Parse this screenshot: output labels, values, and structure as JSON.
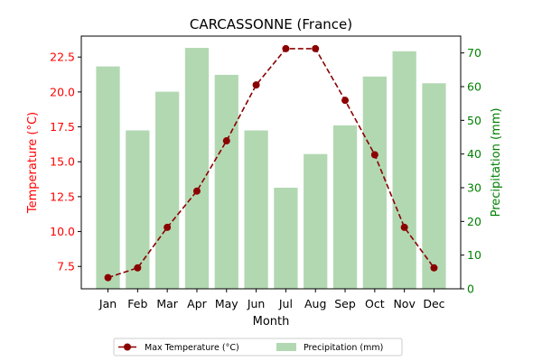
{
  "chart_data": {
    "type": "bar+line",
    "title": "CARCASSONNE (France)",
    "xlabel": "Month",
    "categories": [
      "Jan",
      "Feb",
      "Mar",
      "Apr",
      "May",
      "Jun",
      "Jul",
      "Aug",
      "Sep",
      "Oct",
      "Nov",
      "Dec"
    ],
    "left_axis": {
      "label": "Temperature (°C)",
      "color": "#ff0000",
      "ylim": [
        5.9,
        24.0
      ],
      "ticks": [
        "7.5",
        "10.0",
        "12.5",
        "15.0",
        "17.5",
        "20.0",
        "22.5"
      ]
    },
    "right_axis": {
      "label": "Precipitation (mm)",
      "color": "#008000",
      "ylim": [
        0,
        75
      ],
      "ticks": [
        "0",
        "10",
        "20",
        "30",
        "40",
        "50",
        "60",
        "70"
      ]
    },
    "series": [
      {
        "name": "Max Temperature (°C)",
        "type": "line",
        "axis": "left",
        "color": "#8b0000",
        "style": "dashed-with-markers",
        "values": [
          6.7,
          7.4,
          10.3,
          12.9,
          16.5,
          20.5,
          23.1,
          23.1,
          19.4,
          15.5,
          10.3,
          7.4
        ]
      },
      {
        "name": "Precipitation (mm)",
        "type": "bar",
        "axis": "right",
        "color": "#b2d8b2",
        "values": [
          66,
          47,
          58.5,
          71.5,
          63.5,
          47,
          30,
          40,
          48.5,
          63,
          70.5,
          61
        ]
      }
    ],
    "legend": {
      "placement": "bottom-center",
      "entries": [
        "Max Temperature (°C)",
        "Precipitation (mm)"
      ]
    },
    "grid": false
  }
}
